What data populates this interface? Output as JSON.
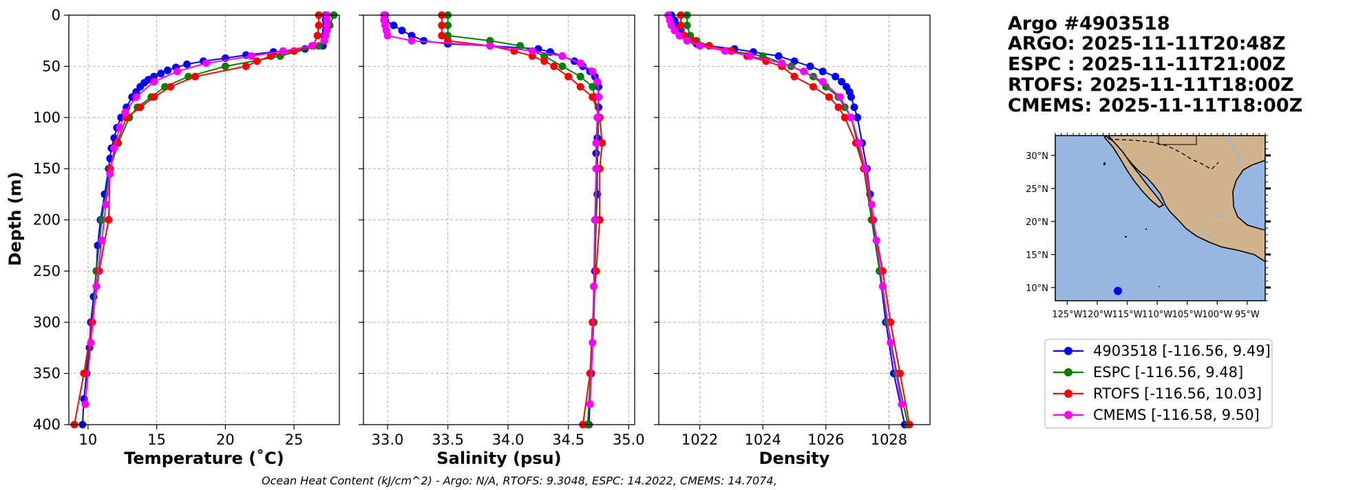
{
  "header": {
    "title_lines": [
      "Argo #4903518",
      "ARGO: 2025-11-11T20:48Z",
      "ESPC : 2025-11-11T21:00Z",
      "RTOFS: 2025-11-11T18:00Z",
      "CMEMS: 2025-11-11T18:00Z"
    ]
  },
  "footer": {
    "text": "Ocean Heat Content (kJ/cm^2) - Argo: N/A,  RTOFS: 9.3048,  ESPC: 14.2022,  CMEMS: 14.7074,"
  },
  "colors": {
    "argo": "#0000ff",
    "espc": "#008000",
    "rtofs": "#ff0000",
    "cmems": "#ff00ff",
    "ocean": "#97b6e1",
    "land": "#d2b48c"
  },
  "map": {
    "lat_ticks": [
      "30°N",
      "25°N",
      "20°N",
      "15°N",
      "10°N"
    ],
    "lon_ticks": [
      "125°W",
      "120°W",
      "115°W",
      "110°W",
      "105°W",
      "100°W",
      "95°W"
    ],
    "float_position": {
      "lon": -116.56,
      "lat": 9.49
    }
  },
  "legend": {
    "entries": [
      {
        "label": "4903518 [-116.56, 9.49]",
        "color": "#0000ff"
      },
      {
        "label": "ESPC [-116.56, 9.48]",
        "color": "#008000"
      },
      {
        "label": "RTOFS [-116.56, 10.03]",
        "color": "#ff0000"
      },
      {
        "label": "CMEMS [-116.58, 9.50]",
        "color": "#ff00ff"
      }
    ]
  },
  "chart_data": [
    {
      "type": "line",
      "title": "",
      "xlabel": "Temperature (˚C)",
      "ylabel": "Depth (m)",
      "xlim": [
        8.6,
        28.3
      ],
      "ylim": [
        400,
        0
      ],
      "grid": true,
      "xticks": [
        10,
        15,
        20,
        25
      ],
      "yticks": [
        0,
        50,
        100,
        150,
        200,
        250,
        300,
        350,
        400
      ],
      "series": [
        {
          "name": "4903518",
          "color": "#0000ff",
          "depth": [
            0,
            5,
            10,
            15,
            20,
            25,
            30,
            33,
            36,
            39,
            42,
            45,
            48,
            51,
            54,
            57,
            60,
            63,
            66,
            70,
            75,
            80,
            90,
            100,
            110,
            120,
            130,
            140,
            150,
            175,
            200,
            225,
            250,
            275,
            300,
            325,
            350,
            375,
            400
          ],
          "values": [
            27.3,
            27.3,
            27.3,
            27.3,
            27.2,
            27.2,
            27.1,
            25.8,
            23.5,
            21.5,
            20.0,
            18.4,
            17.2,
            16.4,
            15.8,
            15.3,
            14.8,
            14.4,
            14.1,
            13.8,
            13.5,
            13.2,
            12.8,
            12.4,
            12.1,
            11.9,
            11.7,
            11.6,
            11.5,
            11.2,
            10.9,
            10.7,
            10.6,
            10.4,
            10.2,
            10.1,
            9.9,
            9.7,
            9.6
          ]
        },
        {
          "name": "ESPC",
          "color": "#008000",
          "depth": [
            0,
            10,
            20,
            30,
            40,
            50,
            60,
            70,
            80,
            90,
            100,
            125,
            150,
            200,
            250,
            300,
            350
          ],
          "values": [
            27.9,
            27.6,
            27.3,
            26.8,
            24.0,
            20.0,
            17.3,
            15.6,
            14.6,
            13.6,
            13.0,
            12.2,
            11.6,
            11.0,
            10.6,
            10.3,
            9.8
          ]
        },
        {
          "name": "RTOFS",
          "color": "#ff0000",
          "depth": [
            0,
            10,
            20,
            30,
            35,
            40,
            45,
            50,
            60,
            70,
            80,
            90,
            100,
            125,
            150,
            200,
            250,
            300,
            350,
            400
          ],
          "values": [
            26.8,
            26.8,
            26.7,
            26.4,
            25.0,
            23.3,
            22.3,
            21.5,
            17.8,
            16.0,
            14.8,
            13.8,
            12.8,
            12.1,
            11.6,
            11.5,
            10.8,
            10.3,
            9.7,
            9.0
          ]
        },
        {
          "name": "CMEMS",
          "color": "#ff00ff",
          "depth": [
            0,
            5,
            10,
            15,
            20,
            25,
            30,
            35,
            40,
            47,
            55,
            65,
            80,
            95,
            110,
            130,
            155,
            185,
            220,
            265,
            320,
            380
          ],
          "values": [
            27.4,
            27.4,
            27.4,
            27.4,
            27.3,
            27.2,
            26.3,
            24.2,
            21.9,
            18.6,
            16.5,
            14.8,
            13.5,
            12.7,
            12.3,
            11.9,
            11.6,
            11.3,
            11.0,
            10.6,
            10.2,
            9.8
          ]
        }
      ]
    },
    {
      "type": "line",
      "title": "",
      "xlabel": "Salinity (psu)",
      "ylabel": "",
      "xlim": [
        32.8,
        35.05
      ],
      "ylim": [
        400,
        0
      ],
      "grid": true,
      "xticks": [
        33.0,
        33.5,
        34.0,
        34.5,
        35.0
      ],
      "series": [
        {
          "name": "4903518",
          "color": "#0000ff",
          "depth": [
            0,
            5,
            10,
            15,
            20,
            25,
            28,
            30,
            33,
            36,
            40,
            45,
            50,
            55,
            60,
            65,
            70,
            80,
            90,
            100,
            120,
            135,
            150,
            175,
            200,
            250,
            300,
            350,
            400
          ],
          "values": [
            32.98,
            32.98,
            33.05,
            33.12,
            33.2,
            33.3,
            33.5,
            33.85,
            34.25,
            34.35,
            34.45,
            34.55,
            34.62,
            34.68,
            34.72,
            34.74,
            34.75,
            34.75,
            34.75,
            34.75,
            34.74,
            34.73,
            34.74,
            34.74,
            34.73,
            34.72,
            34.71,
            34.69,
            34.67
          ]
        },
        {
          "name": "ESPC",
          "color": "#008000",
          "depth": [
            0,
            10,
            20,
            25,
            30,
            40,
            50,
            60,
            70,
            80,
            100,
            150,
            200,
            300,
            400
          ],
          "values": [
            33.5,
            33.5,
            33.5,
            33.85,
            34.1,
            34.3,
            34.45,
            34.6,
            34.7,
            34.72,
            34.75,
            34.74,
            34.73,
            34.71,
            34.66
          ]
        },
        {
          "name": "RTOFS",
          "color": "#ff0000",
          "depth": [
            0,
            10,
            20,
            25,
            30,
            35,
            40,
            45,
            50,
            60,
            70,
            80,
            100,
            125,
            150,
            200,
            250,
            300,
            350,
            400
          ],
          "values": [
            33.45,
            33.45,
            33.45,
            33.5,
            33.85,
            34.05,
            34.2,
            34.3,
            34.38,
            34.5,
            34.6,
            34.7,
            34.76,
            34.78,
            34.76,
            34.76,
            34.73,
            34.7,
            34.68,
            34.62
          ]
        },
        {
          "name": "CMEMS",
          "color": "#ff00ff",
          "depth": [
            0,
            5,
            10,
            15,
            20,
            25,
            30,
            35,
            40,
            47,
            55,
            65,
            80,
            100,
            125,
            150,
            200,
            265,
            320,
            380
          ],
          "values": [
            32.97,
            32.97,
            32.98,
            32.99,
            33.0,
            33.2,
            33.85,
            34.2,
            34.45,
            34.6,
            34.7,
            34.74,
            34.75,
            34.74,
            34.73,
            34.73,
            34.72,
            34.71,
            34.7,
            34.68
          ]
        }
      ]
    },
    {
      "type": "line",
      "title": "",
      "xlabel": "Density",
      "ylabel": "",
      "xlim": [
        1020.7,
        1029.3
      ],
      "ylim": [
        400,
        0
      ],
      "grid": true,
      "xticks": [
        1022,
        1024,
        1026,
        1028
      ],
      "series": [
        {
          "name": "4903518",
          "color": "#0000ff",
          "depth": [
            0,
            5,
            10,
            15,
            20,
            25,
            28,
            30,
            33,
            36,
            40,
            45,
            50,
            55,
            60,
            65,
            70,
            75,
            80,
            90,
            100,
            125,
            150,
            175,
            200,
            250,
            300,
            350,
            400
          ],
          "values": [
            1021.1,
            1021.2,
            1021.3,
            1021.4,
            1021.5,
            1021.6,
            1021.9,
            1022.3,
            1023.1,
            1023.7,
            1024.5,
            1025.0,
            1025.5,
            1025.9,
            1026.3,
            1026.5,
            1026.65,
            1026.75,
            1026.8,
            1026.9,
            1027.0,
            1027.15,
            1027.3,
            1027.4,
            1027.5,
            1027.7,
            1027.9,
            1028.15,
            1028.5
          ]
        },
        {
          "name": "ESPC",
          "color": "#008000",
          "depth": [
            0,
            10,
            20,
            25,
            30,
            35,
            40,
            50,
            60,
            70,
            80,
            90,
            100,
            125,
            150,
            200,
            250,
            300,
            350,
            400
          ],
          "values": [
            1021.6,
            1021.6,
            1021.7,
            1021.9,
            1022.3,
            1023.0,
            1024.0,
            1024.9,
            1025.6,
            1026.0,
            1026.4,
            1026.6,
            1026.8,
            1027.0,
            1027.2,
            1027.45,
            1027.7,
            1027.95,
            1028.25,
            1028.6
          ]
        },
        {
          "name": "RTOFS",
          "color": "#ff0000",
          "depth": [
            0,
            10,
            20,
            25,
            30,
            35,
            40,
            45,
            50,
            60,
            70,
            80,
            90,
            100,
            125,
            150,
            200,
            250,
            300,
            350,
            400
          ],
          "values": [
            1021.4,
            1021.4,
            1021.5,
            1021.8,
            1022.3,
            1023.0,
            1023.5,
            1024.1,
            1024.6,
            1025.0,
            1025.6,
            1026.1,
            1026.4,
            1026.6,
            1026.95,
            1027.2,
            1027.5,
            1027.8,
            1028.05,
            1028.35,
            1028.65
          ]
        },
        {
          "name": "CMEMS",
          "color": "#ff00ff",
          "depth": [
            0,
            5,
            10,
            15,
            20,
            25,
            30,
            35,
            40,
            47,
            55,
            65,
            80,
            100,
            125,
            150,
            185,
            220,
            265,
            320,
            380
          ],
          "values": [
            1021.0,
            1021.05,
            1021.1,
            1021.2,
            1021.35,
            1021.6,
            1022.0,
            1022.8,
            1023.6,
            1024.6,
            1025.3,
            1025.9,
            1026.45,
            1026.8,
            1027.05,
            1027.25,
            1027.45,
            1027.6,
            1027.8,
            1028.05,
            1028.4
          ]
        }
      ]
    }
  ]
}
